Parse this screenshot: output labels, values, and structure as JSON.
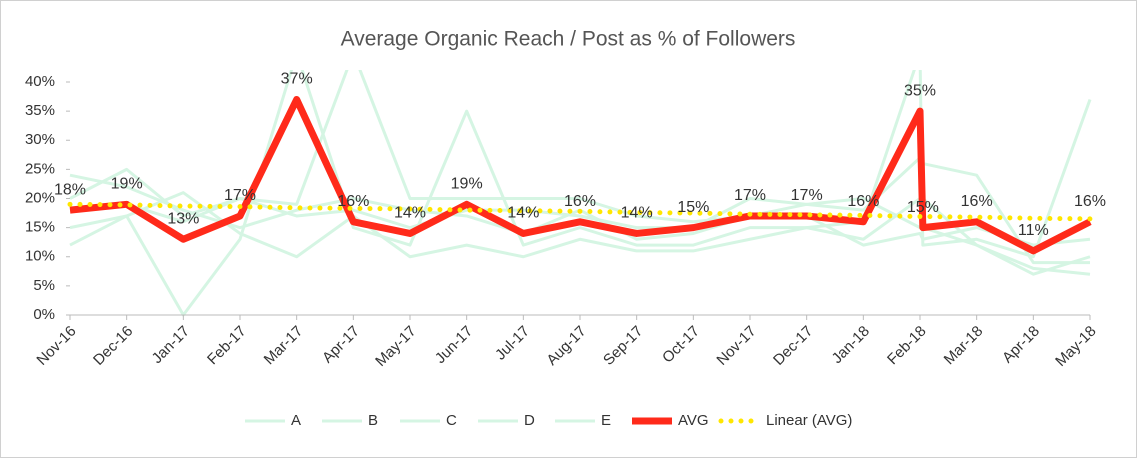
{
  "chart_data": {
    "type": "line",
    "title": "Average Organic Reach / Post as % of Followers",
    "x": [
      0,
      1,
      2,
      3,
      4,
      5,
      6,
      7,
      8,
      9,
      10,
      11,
      12,
      13,
      14,
      15,
      15.05,
      16,
      17,
      18
    ],
    "xlim": [
      0,
      18
    ],
    "xticks": [
      {
        "value": 0,
        "label": "Nov-16"
      },
      {
        "value": 1,
        "label": "Dec-16"
      },
      {
        "value": 2,
        "label": "Jan-17"
      },
      {
        "value": 3,
        "label": "Feb-17"
      },
      {
        "value": 4,
        "label": "Mar-17"
      },
      {
        "value": 5,
        "label": "Apr-17"
      },
      {
        "value": 6,
        "label": "May-17"
      },
      {
        "value": 7,
        "label": "Jun-17"
      },
      {
        "value": 8,
        "label": "Jul-17"
      },
      {
        "value": 9,
        "label": "Aug-17"
      },
      {
        "value": 10,
        "label": "Sep-17"
      },
      {
        "value": 11,
        "label": "Oct-17"
      },
      {
        "value": 12,
        "label": "Nov-17"
      },
      {
        "value": 13,
        "label": "Dec-17"
      },
      {
        "value": 14,
        "label": "Jan-18"
      },
      {
        "value": 15,
        "label": "Feb-18"
      },
      {
        "value": 16,
        "label": "Mar-18"
      },
      {
        "value": 17,
        "label": "Apr-18"
      },
      {
        "value": 18,
        "label": "May-18"
      }
    ],
    "ylim": [
      0,
      40
    ],
    "yticks": [
      {
        "value": 0,
        "label": "0%"
      },
      {
        "value": 5,
        "label": "5%"
      },
      {
        "value": 10,
        "label": "10%"
      },
      {
        "value": 15,
        "label": "15%"
      },
      {
        "value": 20,
        "label": "20%"
      },
      {
        "value": 25,
        "label": "25%"
      },
      {
        "value": 30,
        "label": "30%"
      },
      {
        "value": 35,
        "label": "35%"
      },
      {
        "value": 40,
        "label": "40%"
      }
    ],
    "legend": "bottom",
    "series": [
      {
        "name": "A",
        "color": "#d5f5e3",
        "width": 3,
        "values": [
          12,
          17,
          21,
          14,
          10,
          17,
          10,
          12,
          10,
          13,
          11,
          11,
          13,
          15,
          16,
          45,
          12,
          13,
          10,
          37
        ]
      },
      {
        "name": "B",
        "color": "#d5f5e3",
        "width": 3,
        "values": [
          15,
          17,
          0,
          13,
          45,
          15,
          12,
          35,
          12,
          15,
          12,
          12,
          15,
          15,
          13,
          20,
          20,
          12,
          7,
          10
        ]
      },
      {
        "name": "C",
        "color": "#d5f5e3",
        "width": 3,
        "values": [
          20,
          25,
          17,
          20,
          19,
          45,
          20,
          20,
          20,
          20,
          17,
          16,
          17,
          19,
          18,
          27,
          26,
          24,
          9,
          9
        ]
      },
      {
        "name": "D",
        "color": "#d5f5e3",
        "width": 3,
        "values": [
          18,
          19,
          16,
          20,
          17,
          18,
          15,
          18,
          18,
          17,
          15,
          15,
          20,
          19,
          20,
          15,
          15,
          12,
          8,
          7
        ]
      },
      {
        "name": "E",
        "color": "#d5f5e3",
        "width": 3,
        "values": [
          24,
          22,
          18,
          15,
          18,
          20,
          18,
          17,
          14,
          18,
          13,
          14,
          17,
          17,
          12,
          14,
          13,
          15,
          12,
          13
        ]
      },
      {
        "name": "AVG",
        "color": "#ff2a1a",
        "width": 7,
        "values": [
          18,
          19,
          13,
          17,
          37,
          16,
          14,
          19,
          14,
          16,
          14,
          15,
          17,
          17,
          16,
          35,
          15,
          16,
          11,
          16
        ],
        "value_labels": [
          "18%",
          "19%",
          "13%",
          "17%",
          "37%",
          "16%",
          "14%",
          "19%",
          "14%",
          "16%",
          "14%",
          "15%",
          "17%",
          "17%",
          "16%",
          "35%",
          "15%",
          "16%",
          "11%",
          "16%"
        ]
      },
      {
        "name": "Linear  (AVG)",
        "color": "#ffe600",
        "width": 5,
        "dotted": true,
        "values": [
          19,
          18.9,
          18.7,
          18.6,
          18.4,
          18.3,
          18.2,
          18,
          17.9,
          17.8,
          17.6,
          17.5,
          17.3,
          17.2,
          17.1,
          16.9,
          16.9,
          16.8,
          16.6,
          16.5
        ]
      }
    ]
  }
}
